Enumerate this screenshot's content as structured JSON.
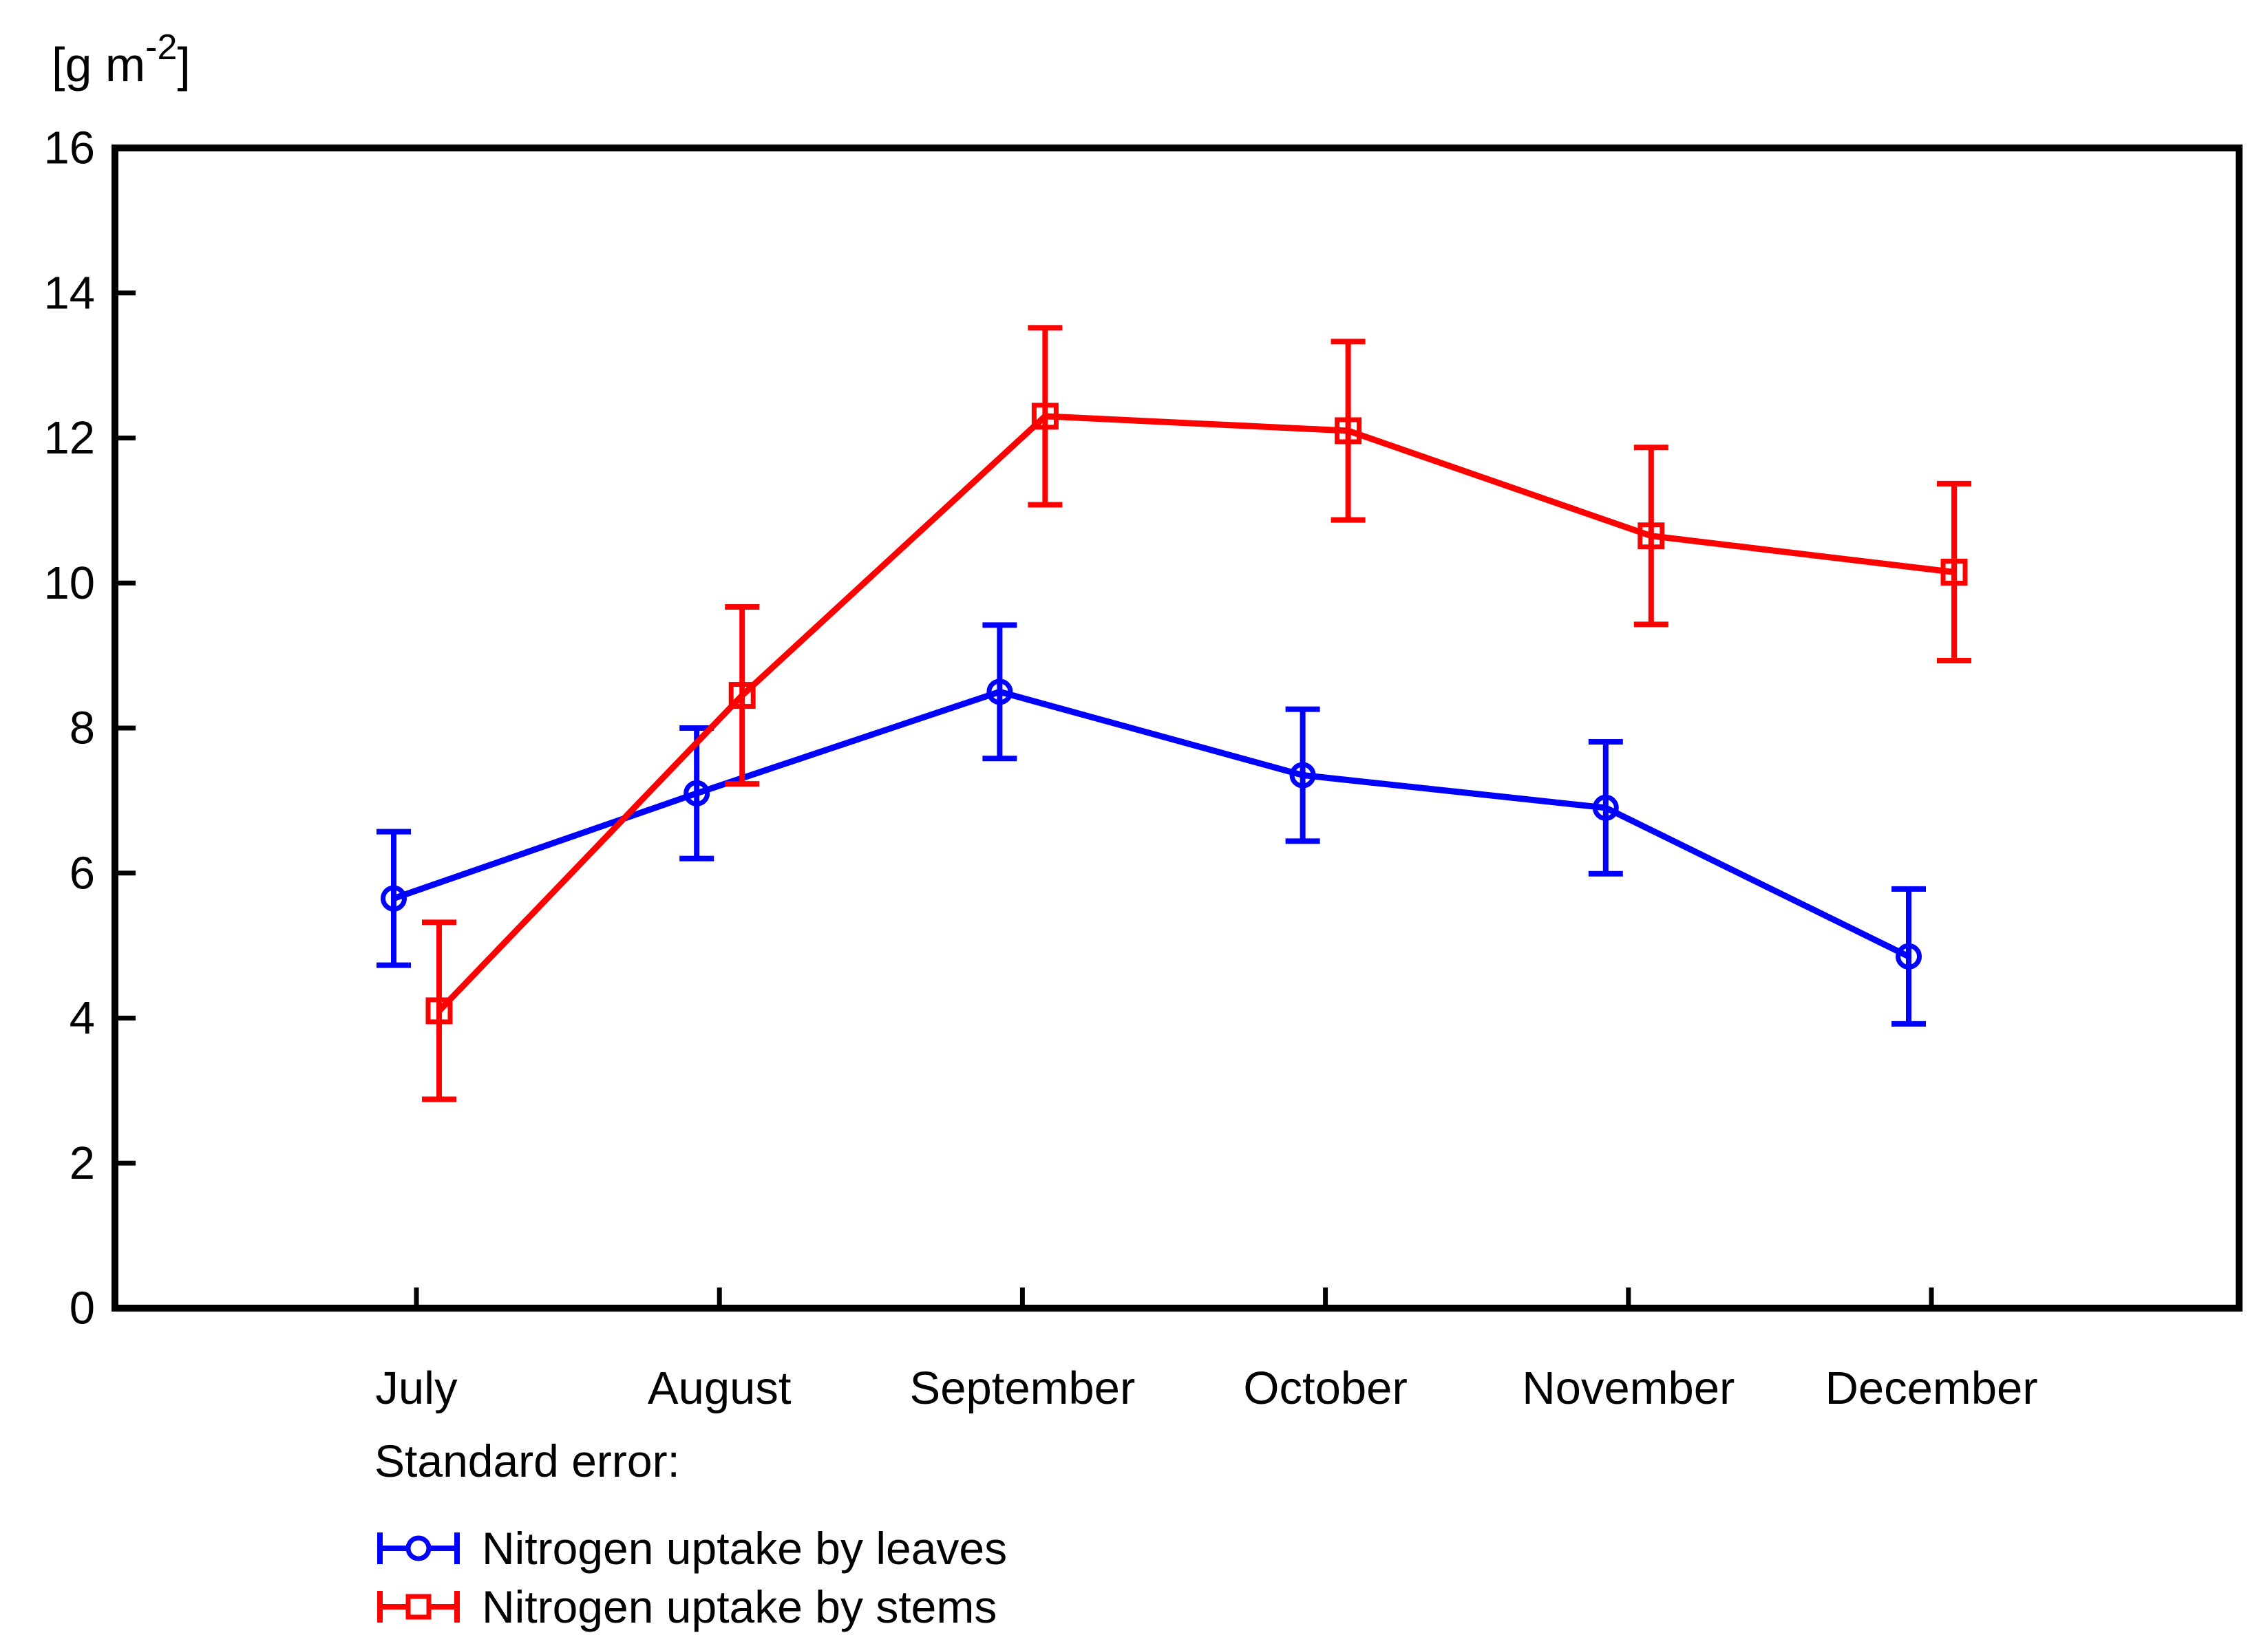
{
  "chart_data": {
    "type": "line",
    "title": "",
    "y_unit": {
      "pre": "[g m",
      "sup": "-2",
      "post": "]"
    },
    "categories": [
      "July",
      "August",
      "September",
      "October",
      "November",
      "December"
    ],
    "ylim": [
      0,
      16
    ],
    "ytick_step": 2,
    "grid": false,
    "legend_position": "bottom-left",
    "legend_title": "Standard error:",
    "axis_color": "#000000",
    "background_color": "#ffffff",
    "series": [
      {
        "name": "Nitrogen uptake by leaves",
        "color": "#0000ff",
        "marker": "circle",
        "values": [
          5.65,
          7.1,
          8.5,
          7.35,
          6.9,
          4.85
        ],
        "std_error": [
          0.92,
          0.9,
          0.92,
          0.91,
          0.91,
          0.93
        ]
      },
      {
        "name": "Nitrogen uptake by stems",
        "color": "#ff0000",
        "marker": "square",
        "values": [
          4.1,
          8.45,
          12.3,
          12.1,
          10.65,
          10.15
        ],
        "std_error": [
          1.22,
          1.22,
          1.22,
          1.23,
          1.22,
          1.22
        ]
      }
    ]
  }
}
